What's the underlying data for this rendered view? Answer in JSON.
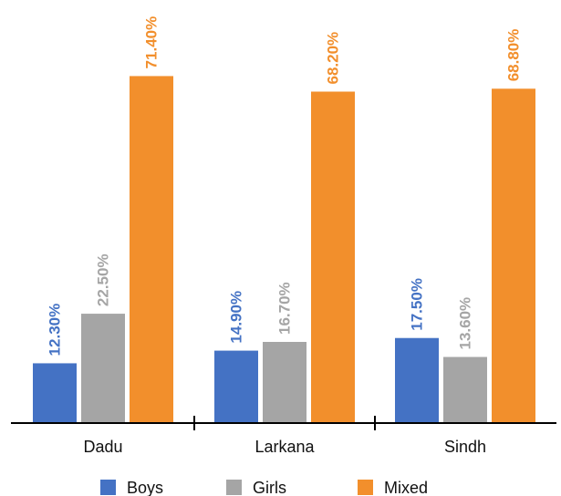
{
  "chart_data": {
    "type": "bar",
    "title": "",
    "xlabel": "",
    "ylabel": "",
    "categories": [
      "Dadu",
      "Larkana",
      "Sindh"
    ],
    "series": [
      {
        "name": "Boys",
        "color": "#4472C4",
        "values": [
          12.3,
          14.9,
          17.5
        ],
        "labels": [
          "12.30%",
          "14.90%",
          "17.50%"
        ]
      },
      {
        "name": "Girls",
        "color": "#A5A5A5",
        "values": [
          22.5,
          16.7,
          13.6
        ],
        "labels": [
          "22.50%",
          "16.70%",
          "13.60%"
        ]
      },
      {
        "name": "Mixed",
        "color": "#F28F2C",
        "values": [
          71.4,
          68.2,
          68.8
        ],
        "labels": [
          "71.40%",
          "68.20%",
          "68.80%"
        ]
      }
    ],
    "ylim": [
      0,
      80
    ],
    "grid": false,
    "legend_position": "bottom"
  }
}
